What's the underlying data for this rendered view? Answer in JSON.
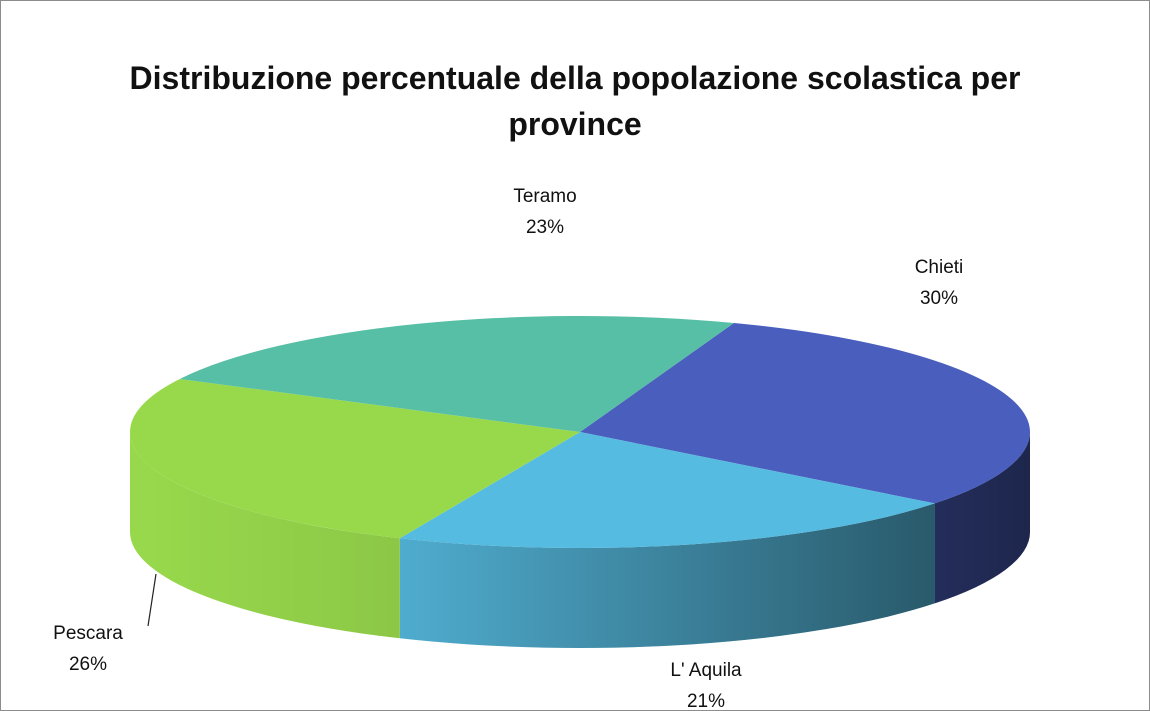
{
  "chart_data": {
    "type": "pie3d",
    "title": "Distribuzione percentuale della popolazione scolastica per province",
    "categories": [
      "Chieti",
      "L' Aquila",
      "Pescara",
      "Teramo"
    ],
    "values": [
      30,
      21,
      26,
      23
    ],
    "value_labels": [
      "30%",
      "21%",
      "26%",
      "23%"
    ],
    "colors": [
      "#4a5fbd",
      "#56bbe0",
      "#98d94c",
      "#57bfa5"
    ]
  }
}
